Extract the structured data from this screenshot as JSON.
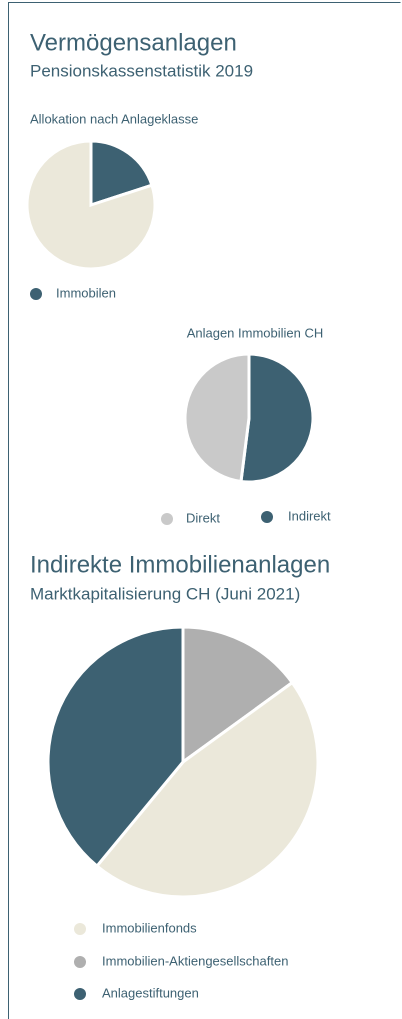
{
  "header": {
    "title": "Vermögensanlagen",
    "subtitle": "Pensionskassenstatistik 2019"
  },
  "section2": {
    "title": "Indirekte Immobilienanlagen",
    "subtitle": "Marktkapitalisierung CH (Juni 2021)"
  },
  "chart_data": [
    {
      "type": "pie",
      "title": "Allokation nach Anlageklasse",
      "categories": [
        "Immobilen",
        null
      ],
      "values": [
        20,
        80
      ],
      "colors": [
        "#3d6172",
        "#ebe8da"
      ]
    },
    {
      "type": "pie",
      "title": "Anlagen Immobilien CH",
      "categories": [
        "Direkt",
        "Indirekt"
      ],
      "values": [
        48,
        52
      ],
      "colors": [
        "#c9c9c9",
        "#3d6172"
      ]
    },
    {
      "type": "pie",
      "categories": [
        "Immobilienfonds",
        "Immobilien-Aktiengesellschaften",
        "Anlagestiftungen"
      ],
      "values": [
        46,
        15,
        39
      ],
      "colors": [
        "#ebe8da",
        "#afafaf",
        "#3d6172"
      ]
    }
  ]
}
